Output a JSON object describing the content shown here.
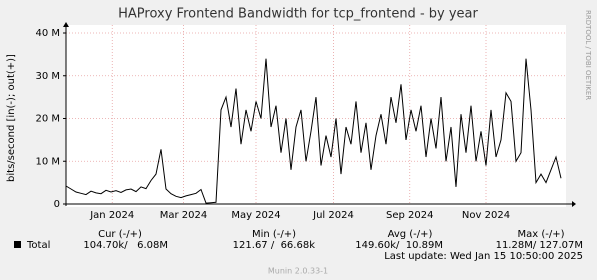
{
  "chart_data": {
    "type": "line",
    "title": "HAProxy Frontend Bandwidth for tcp_frontend - by year",
    "y_label": "bits/second [in(-); out(+)]",
    "side_label": "RRDTOOL / TOBI OETIKER",
    "x": [
      0,
      4,
      8,
      12,
      16,
      20,
      24,
      28,
      32,
      36,
      40,
      44,
      48,
      52,
      56,
      60,
      64,
      68,
      72,
      76,
      80,
      84,
      88,
      92,
      96,
      100,
      104,
      108,
      112,
      116,
      120,
      124,
      128,
      132,
      136,
      140,
      144,
      148,
      152,
      156,
      160,
      164,
      168,
      172,
      176,
      180,
      184,
      188,
      192,
      196,
      200,
      204,
      208,
      212,
      216,
      220,
      224,
      228,
      232,
      236,
      240,
      244,
      248,
      252,
      256,
      260,
      264,
      268,
      272,
      276,
      280,
      284,
      288,
      292,
      296,
      300,
      304,
      308,
      312,
      316,
      320,
      324,
      328,
      332,
      336,
      340,
      344,
      348,
      352,
      356,
      360,
      364,
      368,
      372,
      376,
      380,
      384,
      388,
      392,
      396
    ],
    "series": [
      {
        "name": "Total",
        "color": "#000000",
        "values": [
          4.2,
          3.5,
          2.8,
          2.5,
          2.2,
          3.0,
          2.6,
          2.4,
          3.2,
          2.8,
          3.1,
          2.7,
          3.3,
          3.5,
          2.9,
          4.0,
          3.6,
          5.5,
          7.0,
          12.8,
          3.5,
          2.4,
          1.8,
          1.5,
          1.9,
          2.2,
          2.5,
          3.4,
          0.2,
          0.3,
          0.4,
          22,
          25,
          18,
          27,
          14,
          22,
          17,
          24,
          20,
          34,
          18,
          23,
          12,
          20,
          8,
          18,
          22,
          10,
          17,
          25,
          9,
          16,
          11,
          20,
          7,
          18,
          14,
          24,
          12,
          19,
          8,
          16,
          21,
          14,
          25,
          19,
          28,
          15,
          22,
          17,
          23,
          11,
          20,
          13,
          25,
          10,
          18,
          4,
          21,
          12,
          23,
          10,
          17,
          9,
          22,
          11,
          15,
          26,
          24,
          10,
          12,
          34,
          22,
          5,
          7,
          5,
          8,
          11,
          6
        ]
      }
    ],
    "xlim": [
      0,
      400
    ],
    "xticks": [
      {
        "value": 37,
        "label": "Jan 2024"
      },
      {
        "value": 94,
        "label": "Mar 2024"
      },
      {
        "value": 152,
        "label": "May 2024"
      },
      {
        "value": 214,
        "label": "Jul 2024"
      },
      {
        "value": 275,
        "label": "Sep 2024"
      },
      {
        "value": 336,
        "label": "Nov 2024"
      }
    ],
    "ylim": [
      0,
      40
    ],
    "yticks": [
      0,
      {
        "value": 10,
        "label": "10 M"
      },
      {
        "value": 20,
        "label": "20 M"
      },
      {
        "value": 30,
        "label": "30 M"
      },
      {
        "value": 40,
        "label": "40 M"
      }
    ],
    "grid": true,
    "stats_headers": [
      "Cur (-/+)",
      "Min (-/+)",
      "Avg (-/+)",
      "Max (-/+)"
    ],
    "stats": [
      "104.70k/   6.08M",
      "121.67 /  66.68k",
      "149.60k/  10.89M",
      "11.28M/ 127.07M"
    ],
    "last_update": "Last update: Wed Jan 15 10:50:00 2025",
    "footer": "Munin 2.0.33-1"
  }
}
